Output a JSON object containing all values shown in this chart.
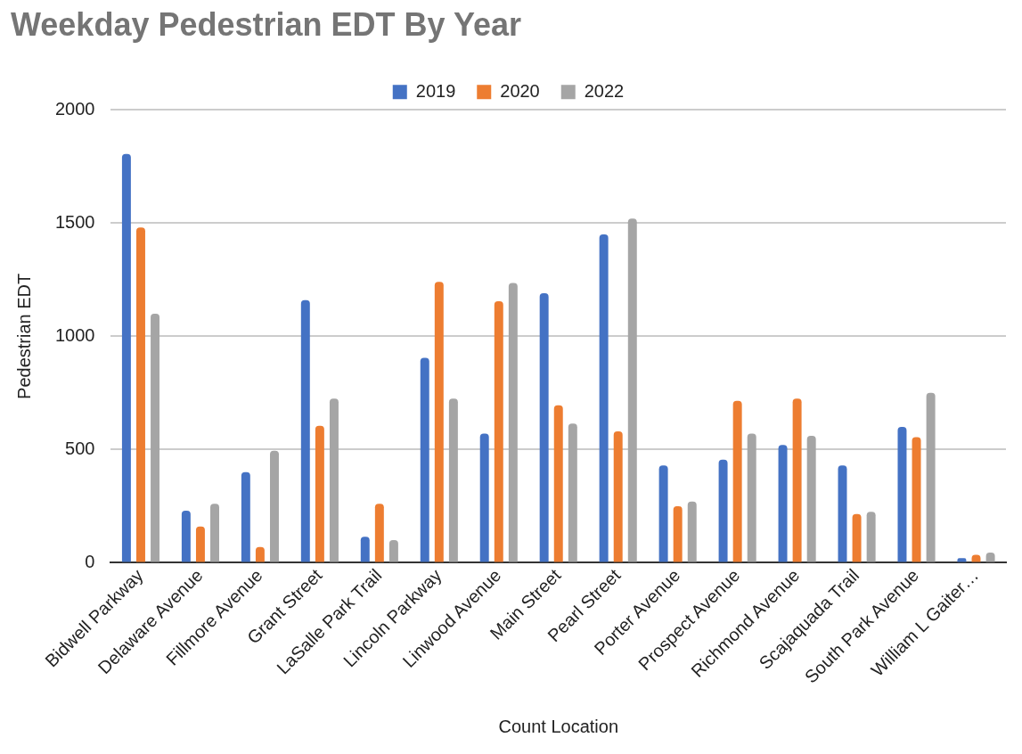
{
  "chart_data": {
    "type": "bar",
    "title": "Weekday Pedestrian EDT By Year",
    "xlabel": "Count Location",
    "ylabel": "Pedestrian EDT",
    "categories": [
      "Bidwell Parkway",
      "Delaware Avenue",
      "Fillmore Avenue",
      "Grant Street",
      "LaSalle Park Trail",
      "Lincoln Parkway",
      "Linwood Avenue",
      "Main Street",
      "Pearl Street",
      "Porter Avenue",
      "Prospect Avenue",
      "Richmond Avenue",
      "Scajaquada Trail",
      "South Park Avenue",
      "William L Gaiter…"
    ],
    "series": [
      {
        "name": "2019",
        "color": "#4472c4",
        "values": [
          1805,
          230,
          400,
          1160,
          115,
          905,
          570,
          1190,
          1450,
          430,
          455,
          520,
          430,
          600,
          20
        ]
      },
      {
        "name": "2020",
        "color": "#ed7d31",
        "values": [
          1480,
          160,
          70,
          605,
          260,
          1240,
          1155,
          695,
          580,
          250,
          715,
          725,
          215,
          555,
          35
        ]
      },
      {
        "name": "2022",
        "color": "#a5a5a5",
        "values": [
          1100,
          260,
          495,
          725,
          100,
          725,
          1235,
          615,
          1520,
          270,
          570,
          560,
          225,
          750,
          45
        ]
      }
    ],
    "ylim": [
      0,
      2000
    ],
    "yticks": [
      0,
      500,
      1000,
      1500,
      2000
    ],
    "grid": "y",
    "legend": "top"
  }
}
